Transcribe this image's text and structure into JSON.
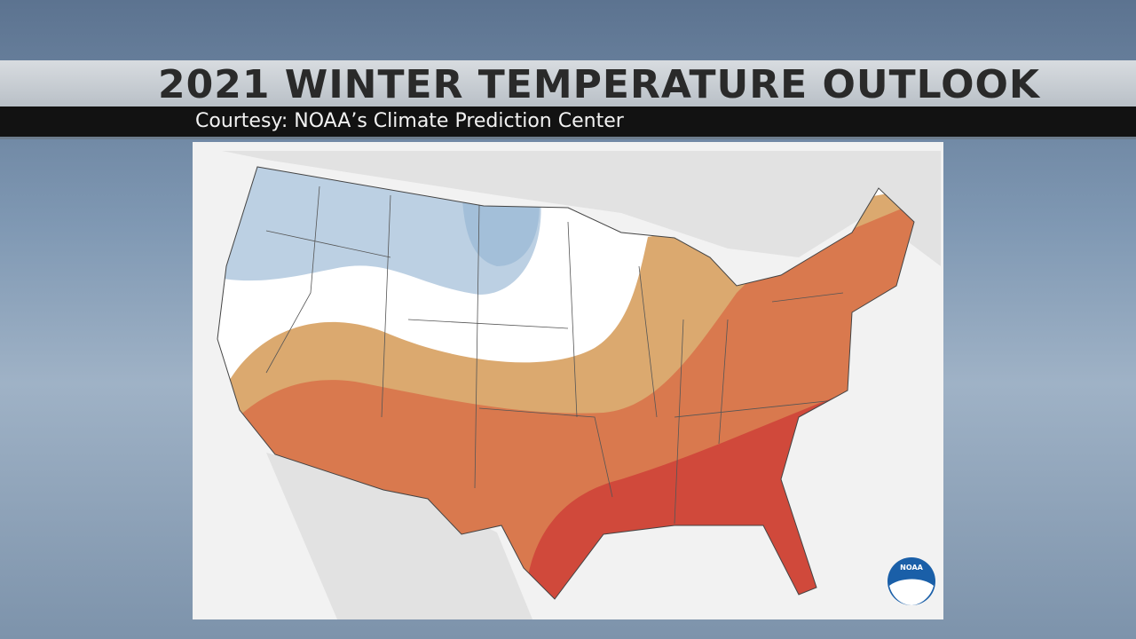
{
  "header": {
    "title": "2021 WINTER TEMPERATURE OUTLOOK",
    "subtitle": "Courtesy: NOAA’s Climate Prediction Center"
  },
  "logo": {
    "label": "NOAA"
  }
}
